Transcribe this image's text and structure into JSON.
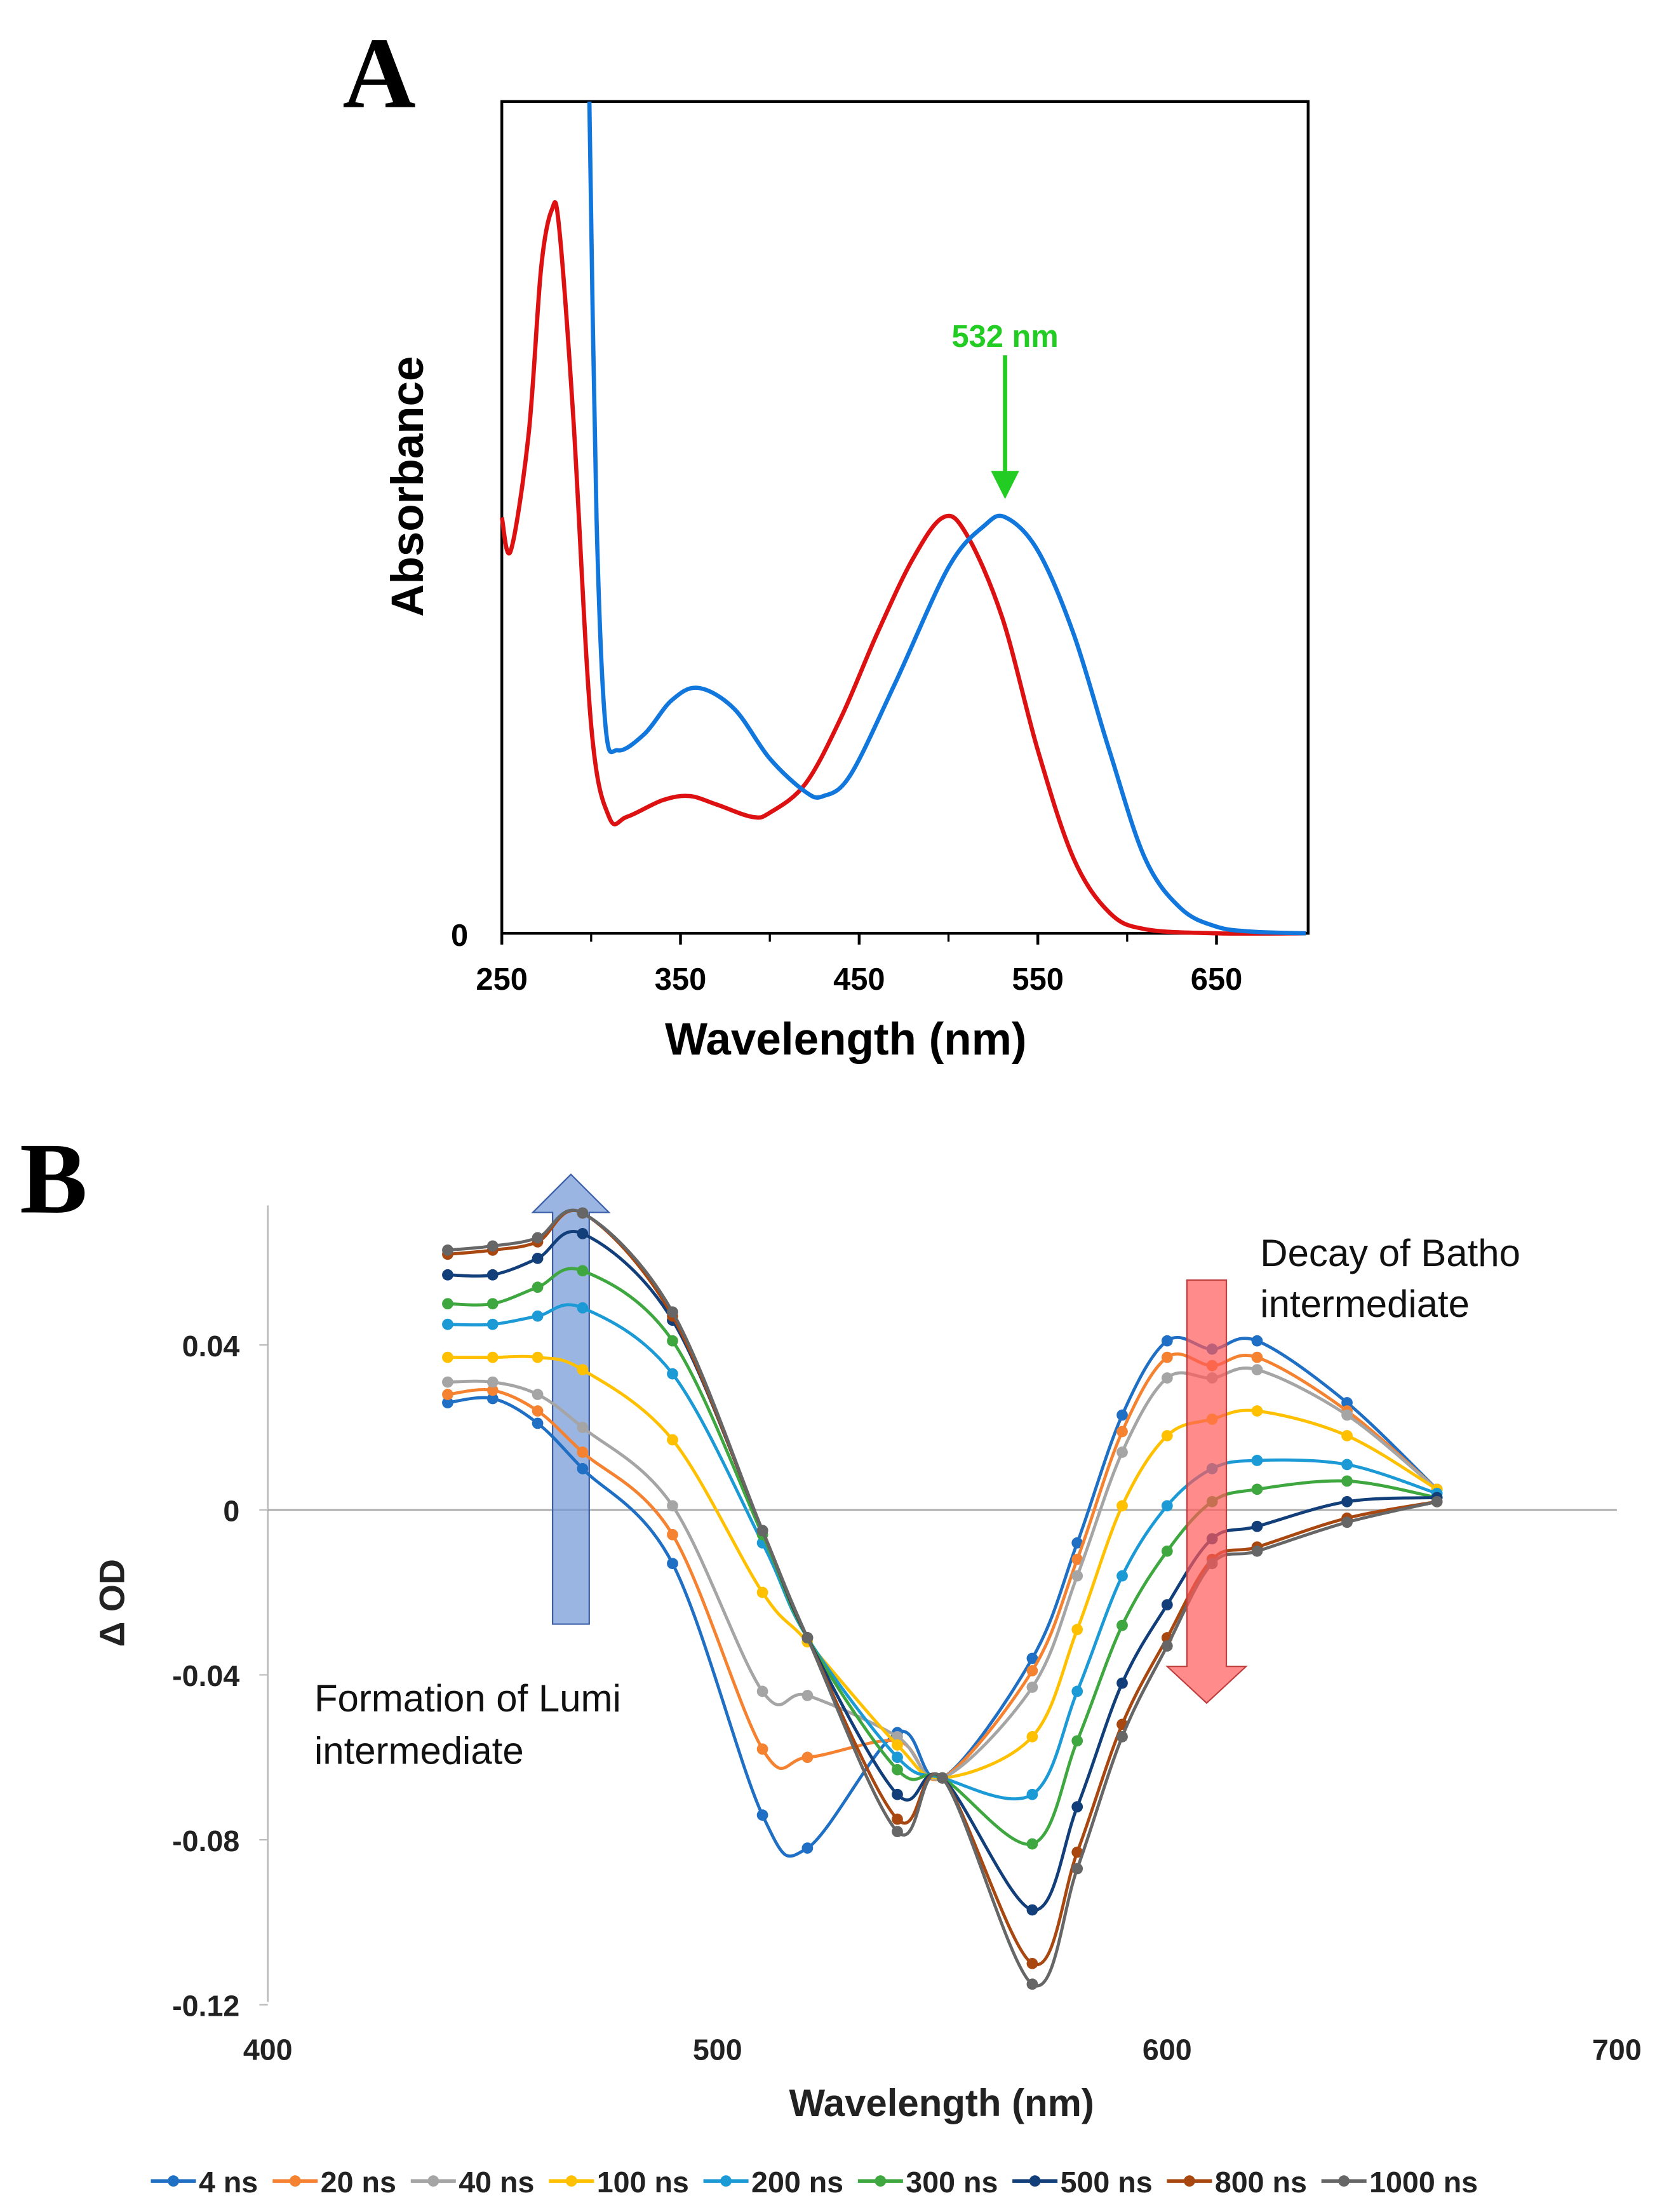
{
  "chart_data": [
    {
      "type": "line",
      "panel_label": "A",
      "xlabel": "Wavelength (nm)",
      "ylabel": "Absorbance",
      "xlim": [
        250,
        700
      ],
      "ylim": [
        0,
        1
      ],
      "x_ticks": [
        "250",
        "350",
        "450",
        "550",
        "650"
      ],
      "y_ticks": [
        "0"
      ],
      "annotation": "532 nm",
      "colors": {
        "annotation": "#22cc22"
      },
      "series": [
        {
          "name": "red",
          "color": "#dd1111",
          "x": [
            250,
            255,
            265,
            272,
            278,
            282,
            290,
            300,
            310,
            320,
            340,
            355,
            370,
            390,
            400,
            420,
            440,
            460,
            480,
            497,
            510,
            530,
            550,
            570,
            590,
            610,
            650,
            700
          ],
          "y": [
            0.5,
            0.46,
            0.6,
            0.8,
            0.87,
            0.85,
            0.62,
            0.25,
            0.14,
            0.14,
            0.16,
            0.165,
            0.155,
            0.14,
            0.145,
            0.18,
            0.26,
            0.36,
            0.45,
            0.5,
            0.48,
            0.38,
            0.22,
            0.09,
            0.025,
            0.005,
            0,
            0
          ]
        },
        {
          "name": "blue",
          "color": "#1177dd",
          "x": [
            299,
            303,
            308,
            315,
            330,
            345,
            360,
            380,
            400,
            420,
            430,
            445,
            470,
            500,
            520,
            532,
            550,
            570,
            590,
            610,
            630,
            650,
            670,
            700
          ],
          "y": [
            1.0,
            0.5,
            0.25,
            0.22,
            0.24,
            0.28,
            0.295,
            0.27,
            0.21,
            0.17,
            0.165,
            0.19,
            0.3,
            0.44,
            0.49,
            0.5,
            0.46,
            0.36,
            0.22,
            0.09,
            0.03,
            0.008,
            0.002,
            0
          ]
        }
      ]
    },
    {
      "type": "line",
      "panel_label": "B",
      "xlabel": "Wavelength (nm)",
      "ylabel": "Δ OD",
      "xlim": [
        400,
        700
      ],
      "ylim": [
        -0.12,
        0.075
      ],
      "x_ticks": [
        "400",
        "500",
        "600",
        "700"
      ],
      "y_ticks": [
        {
          "v": 0.04,
          "label": "0.04"
        },
        {
          "v": 0,
          "label": "0"
        },
        {
          "v": -0.04,
          "label": "-0.04"
        },
        {
          "v": -0.08,
          "label": "-0.08"
        },
        {
          "v": -0.12,
          "label": "-0.12"
        }
      ],
      "legend_position": "bottom",
      "annotations": {
        "lumi": [
          "Formation of Lumi",
          "intermediate"
        ],
        "batho": [
          "Decay of Batho",
          "intermediate"
        ]
      },
      "x": [
        440,
        450,
        460,
        470,
        490,
        510,
        520,
        540,
        550,
        570,
        580,
        590,
        600,
        610,
        620,
        640,
        660
      ],
      "series": [
        {
          "name": "4 ns",
          "color": "#1f6fc4",
          "values": [
            0.026,
            0.027,
            0.021,
            0.01,
            -0.013,
            -0.074,
            -0.082,
            -0.054,
            -0.065,
            -0.036,
            -0.008,
            0.023,
            0.041,
            0.039,
            0.041,
            0.026,
            0.005
          ]
        },
        {
          "name": "20 ns",
          "color": "#f58231",
          "values": [
            0.028,
            0.029,
            0.024,
            0.014,
            -0.006,
            -0.058,
            -0.06,
            -0.056,
            -0.065,
            -0.039,
            -0.012,
            0.019,
            0.037,
            0.035,
            0.037,
            0.024,
            0.005
          ]
        },
        {
          "name": "40 ns",
          "color": "#a5a5a5",
          "values": [
            0.031,
            0.031,
            0.028,
            0.02,
            0.001,
            -0.044,
            -0.045,
            -0.055,
            -0.065,
            -0.043,
            -0.016,
            0.014,
            0.032,
            0.032,
            0.034,
            0.023,
            0.005
          ]
        },
        {
          "name": "100 ns",
          "color": "#ffc000",
          "values": [
            0.037,
            0.037,
            0.037,
            0.034,
            0.017,
            -0.02,
            -0.032,
            -0.057,
            -0.065,
            -0.055,
            -0.029,
            0.001,
            0.018,
            0.022,
            0.024,
            0.018,
            0.005
          ]
        },
        {
          "name": "200 ns",
          "color": "#1b9ad6",
          "values": [
            0.045,
            0.045,
            0.047,
            0.049,
            0.033,
            -0.008,
            -0.031,
            -0.06,
            -0.065,
            -0.069,
            -0.044,
            -0.016,
            0.001,
            0.01,
            0.012,
            0.011,
            0.004
          ]
        },
        {
          "name": "300 ns",
          "color": "#3fa73f",
          "values": [
            0.05,
            0.05,
            0.054,
            0.058,
            0.041,
            -0.006,
            -0.031,
            -0.063,
            -0.065,
            -0.081,
            -0.056,
            -0.028,
            -0.01,
            0.002,
            0.005,
            0.007,
            0.003
          ]
        },
        {
          "name": "500 ns",
          "color": "#123f7a",
          "values": [
            0.057,
            0.057,
            0.061,
            0.067,
            0.046,
            -0.005,
            -0.031,
            -0.069,
            -0.065,
            -0.097,
            -0.072,
            -0.042,
            -0.023,
            -0.007,
            -0.004,
            0.002,
            0.003
          ]
        },
        {
          "name": "800 ns",
          "color": "#a8470f",
          "values": [
            0.062,
            0.063,
            0.065,
            0.072,
            0.047,
            -0.005,
            -0.031,
            -0.075,
            -0.065,
            -0.11,
            -0.083,
            -0.052,
            -0.031,
            -0.012,
            -0.009,
            -0.002,
            0.002
          ]
        },
        {
          "name": "1000 ns",
          "color": "#666666",
          "values": [
            0.063,
            0.064,
            0.066,
            0.072,
            0.048,
            -0.005,
            -0.031,
            -0.078,
            -0.065,
            -0.115,
            -0.087,
            -0.055,
            -0.033,
            -0.013,
            -0.01,
            -0.003,
            0.002
          ]
        }
      ]
    }
  ]
}
